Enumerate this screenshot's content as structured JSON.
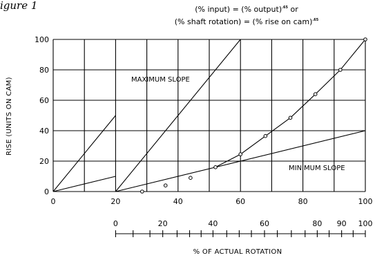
{
  "figure_label": "igure 1",
  "formula": {
    "line1": "(% input) = (% output)",
    "line1_exp": ".65",
    "line1_tail": " or",
    "line2": "(% shaft rotation) = (% rise on cam)",
    "line2_exp": ".65"
  },
  "chart_data": {
    "type": "line",
    "xlim": [
      0,
      100
    ],
    "ylim": [
      0,
      100
    ],
    "x_ticks": [
      0,
      20,
      40,
      60,
      80,
      100
    ],
    "y_ticks": [
      0,
      20,
      40,
      60,
      80,
      100
    ],
    "x_grid": [
      0,
      10,
      20,
      30,
      40,
      50,
      60,
      70,
      80,
      90,
      100
    ],
    "y_grid": [
      0,
      20,
      40,
      60,
      80,
      100
    ],
    "grid": true,
    "ylabel": "RISE (UNITS ON CAM)",
    "xlabel": "% OF ACTUAL ROTATION",
    "annotations": {
      "max_slope": "MAXIMUM SLOPE",
      "min_slope": "MINIMUM SLOPE"
    },
    "reference_lines": {
      "max_slope_small": [
        [
          0,
          0
        ],
        [
          20,
          50
        ]
      ],
      "min_slope_small": [
        [
          0,
          0
        ],
        [
          20,
          10
        ]
      ],
      "max_slope": [
        [
          20,
          0
        ],
        [
          60,
          100
        ]
      ],
      "min_slope": [
        [
          20,
          0
        ],
        [
          100,
          40
        ]
      ]
    },
    "curve_points": [
      [
        28.5,
        0
      ],
      [
        36,
        4
      ],
      [
        44,
        9
      ],
      [
        52,
        16
      ],
      [
        60,
        24.5
      ],
      [
        68,
        36.5
      ],
      [
        76,
        48.5
      ],
      [
        84,
        64
      ],
      [
        92,
        80
      ],
      [
        100,
        100
      ]
    ],
    "curve_line_from": 3,
    "secondary_axis": {
      "ticks": [
        0,
        20,
        40,
        60,
        80,
        90,
        100
      ],
      "tick_positions": [
        20,
        35.1,
        51.2,
        67.7,
        84.6,
        92.4,
        100
      ],
      "minor_positions": [
        20,
        25.6,
        31,
        35.1,
        39.7,
        43.7,
        47.4,
        51.2,
        55.6,
        59.6,
        63.5,
        67.7,
        71.8,
        76.3,
        80.7,
        84.6,
        88.4,
        92.4,
        96.1,
        100
      ]
    }
  }
}
